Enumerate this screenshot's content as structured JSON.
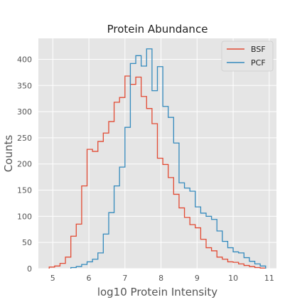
{
  "chart_data": {
    "type": "histogram-step",
    "title": "Protein Abundance",
    "xlabel": "log10 Protein Intensity",
    "ylabel": "Counts",
    "xlim": [
      4.6,
      11.2
    ],
    "ylim": [
      0,
      440
    ],
    "xticks": [
      5,
      6,
      7,
      8,
      9,
      10,
      11
    ],
    "yticks": [
      0,
      50,
      100,
      150,
      200,
      250,
      300,
      350,
      400
    ],
    "grid": true,
    "legend_position": "top-right",
    "series": [
      {
        "name": "BSF",
        "color": "#E24A33",
        "edges": [
          4.9,
          5.05,
          5.2,
          5.35,
          5.5,
          5.65,
          5.8,
          5.95,
          6.1,
          6.25,
          6.4,
          6.55,
          6.7,
          6.85,
          7.0,
          7.15,
          7.3,
          7.45,
          7.6,
          7.75,
          7.9,
          8.05,
          8.2,
          8.35,
          8.5,
          8.65,
          8.8,
          8.95,
          9.1,
          9.25,
          9.4,
          9.55,
          9.7,
          9.85,
          10.0,
          10.15,
          10.3,
          10.45,
          10.6,
          10.75,
          10.9
        ],
        "counts": [
          3,
          5,
          10,
          22,
          62,
          85,
          158,
          228,
          224,
          243,
          259,
          281,
          318,
          327,
          368,
          352,
          366,
          329,
          306,
          277,
          211,
          199,
          174,
          142,
          116,
          98,
          84,
          78,
          56,
          40,
          34,
          22,
          18,
          13,
          12,
          9,
          6,
          4,
          2,
          1
        ]
      },
      {
        "name": "PCF",
        "color": "#348ABD",
        "edges": [
          5.5,
          5.65,
          5.8,
          5.95,
          6.1,
          6.25,
          6.4,
          6.55,
          6.7,
          6.85,
          7.0,
          7.15,
          7.3,
          7.45,
          7.6,
          7.75,
          7.9,
          8.05,
          8.2,
          8.35,
          8.5,
          8.65,
          8.8,
          8.95,
          9.1,
          9.25,
          9.4,
          9.55,
          9.7,
          9.85,
          10.0,
          10.15,
          10.3,
          10.45,
          10.6,
          10.75,
          10.9
        ],
        "counts": [
          2,
          4,
          8,
          13,
          18,
          30,
          66,
          107,
          158,
          194,
          270,
          392,
          407,
          387,
          420,
          340,
          386,
          310,
          289,
          240,
          164,
          154,
          148,
          118,
          106,
          100,
          94,
          72,
          52,
          40,
          32,
          30,
          21,
          14,
          9,
          5
        ]
      }
    ]
  }
}
